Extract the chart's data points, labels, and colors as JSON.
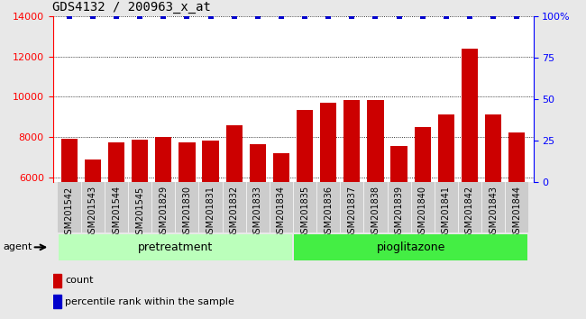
{
  "title": "GDS4132 / 200963_x_at",
  "categories": [
    "GSM201542",
    "GSM201543",
    "GSM201544",
    "GSM201545",
    "GSM201829",
    "GSM201830",
    "GSM201831",
    "GSM201832",
    "GSM201833",
    "GSM201834",
    "GSM201835",
    "GSM201836",
    "GSM201837",
    "GSM201838",
    "GSM201839",
    "GSM201840",
    "GSM201841",
    "GSM201842",
    "GSM201843",
    "GSM201844"
  ],
  "bar_values": [
    7950,
    6900,
    7750,
    7900,
    8000,
    7750,
    7850,
    8600,
    7650,
    7200,
    9350,
    9700,
    9850,
    9850,
    7550,
    8500,
    9150,
    12400,
    9150,
    8250
  ],
  "percentile_values": [
    100,
    100,
    100,
    100,
    100,
    100,
    100,
    100,
    100,
    100,
    100,
    100,
    100,
    100,
    100,
    100,
    100,
    100,
    100,
    100
  ],
  "bar_color": "#cc0000",
  "percentile_color": "#0000cc",
  "ylim_left": [
    5800,
    14000
  ],
  "ylim_right": [
    0,
    100
  ],
  "yticks_left": [
    6000,
    8000,
    10000,
    12000,
    14000
  ],
  "yticks_right": [
    0,
    25,
    50,
    75,
    100
  ],
  "yticklabels_right": [
    "0",
    "25",
    "50",
    "75",
    "100%"
  ],
  "pretreatment_count": 10,
  "group_label_pretreatment": "pretreatment",
  "group_label_pioglitazone": "pioglitazone",
  "group_color_pretreatment": "#bbffbb",
  "group_color_pioglitazone": "#44ee44",
  "agent_label": "agent",
  "legend_count_label": "count",
  "legend_percentile_label": "percentile rank within the sample",
  "background_color": "#e8e8e8",
  "plot_bg_color": "#ffffff",
  "xtick_bg_color": "#c8c8c8",
  "title_fontsize": 10,
  "bar_width": 0.7
}
